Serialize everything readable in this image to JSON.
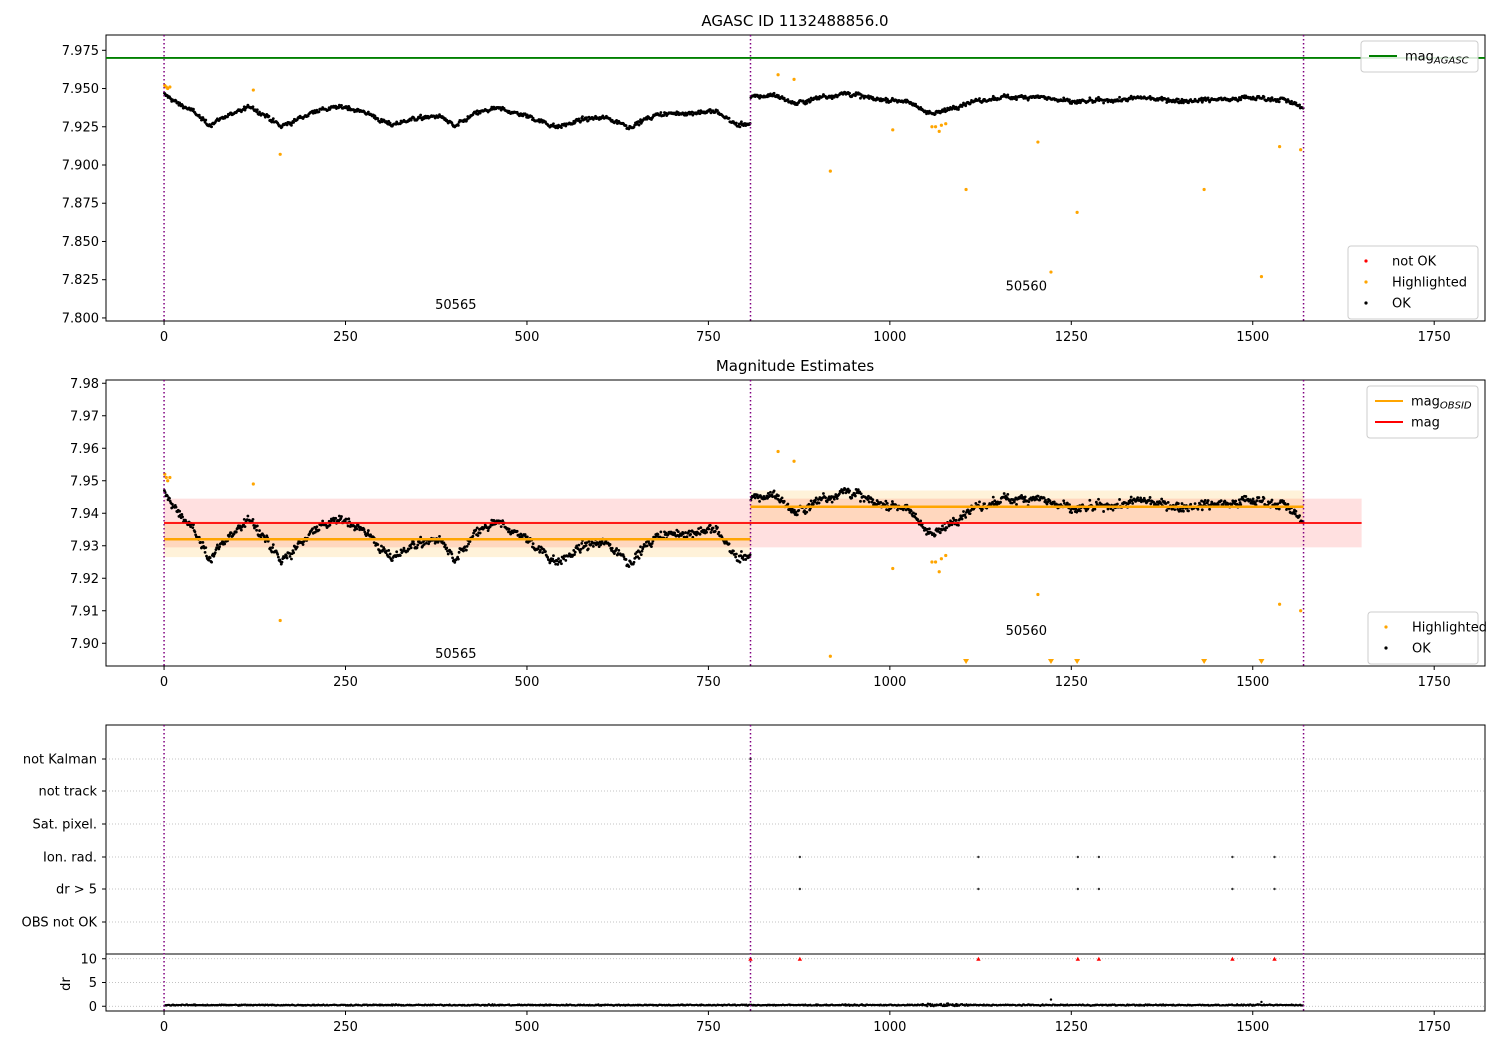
{
  "colors": {
    "ok": "#000000",
    "highlighted": "#ffa500",
    "not_ok": "#ff0000",
    "mag_agasc": "#008000",
    "mag_obsid": "#ffa500",
    "mag": "#ff0000",
    "obsid_boundary": "#800080",
    "grid": "#b0b0b0"
  },
  "chart_data": [
    {
      "type": "scatter",
      "title": "AGASC ID 1132488856.0",
      "xlim": [
        -80,
        1820
      ],
      "ylim": [
        7.798,
        7.985
      ],
      "xticks": [
        "0",
        "250",
        "500",
        "750",
        "1000",
        "1250",
        "1500",
        "1750"
      ],
      "yticks": [
        "7.800",
        "7.825",
        "7.850",
        "7.875",
        "7.900",
        "7.925",
        "7.950",
        "7.975"
      ],
      "obsid_boundaries": [
        0,
        808,
        1570
      ],
      "obsid_labels": [
        {
          "text": "50565",
          "x": 402,
          "y": 7.806
        },
        {
          "text": "50560",
          "x": 1188,
          "y": 7.818
        }
      ],
      "hlines": [
        {
          "name": "mag_AGASC",
          "y": 7.97,
          "color": "#008000"
        }
      ],
      "legends": [
        {
          "position": "upper right",
          "entries": [
            {
              "label": "mag",
              "sub": "AGASC",
              "kind": "line",
              "color": "#008000"
            }
          ]
        },
        {
          "position": "lower right",
          "entries": [
            {
              "label": "not OK",
              "kind": "dot",
              "color": "#ff0000"
            },
            {
              "label": "Highlighted",
              "kind": "dot",
              "color": "#ffa500"
            },
            {
              "label": "OK",
              "kind": "dot",
              "color": "#000000"
            }
          ]
        }
      ],
      "highlighted_points": [
        {
          "x": 1,
          "y": 7.952
        },
        {
          "x": 3,
          "y": 7.951
        },
        {
          "x": 5,
          "y": 7.95
        },
        {
          "x": 8,
          "y": 7.951
        },
        {
          "x": 123,
          "y": 7.949
        },
        {
          "x": 160,
          "y": 7.907
        },
        {
          "x": 846,
          "y": 7.959
        },
        {
          "x": 868,
          "y": 7.956
        },
        {
          "x": 918,
          "y": 7.896
        },
        {
          "x": 1004,
          "y": 7.923
        },
        {
          "x": 1058,
          "y": 7.925
        },
        {
          "x": 1063,
          "y": 7.925
        },
        {
          "x": 1068,
          "y": 7.922
        },
        {
          "x": 1071,
          "y": 7.926
        },
        {
          "x": 1077,
          "y": 7.927
        },
        {
          "x": 1105,
          "y": 7.884
        },
        {
          "x": 1204,
          "y": 7.915
        },
        {
          "x": 1222,
          "y": 7.83
        },
        {
          "x": 1258,
          "y": 7.869
        },
        {
          "x": 1433,
          "y": 7.884
        },
        {
          "x": 1512,
          "y": 7.827
        },
        {
          "x": 1537,
          "y": 7.912
        },
        {
          "x": 1566,
          "y": 7.91
        }
      ],
      "ok_series": {
        "description": "approx. 1570 OK points; values are local levels, each point randomly scattered by +/- jitter",
        "jitter": 0.0045,
        "segments": [
          {
            "x0": 0,
            "x1": 808,
            "levels": [
              [
                0,
                7.946
              ],
              [
                20,
                7.94
              ],
              [
                40,
                7.935
              ],
              [
                60,
                7.926
              ],
              [
                90,
                7.933
              ],
              [
                120,
                7.938
              ],
              [
                140,
                7.932
              ],
              [
                160,
                7.925
              ],
              [
                180,
                7.929
              ],
              [
                210,
                7.936
              ],
              [
                250,
                7.938
              ],
              [
                280,
                7.934
              ],
              [
                310,
                7.926
              ],
              [
                340,
                7.93
              ],
              [
                380,
                7.932
              ],
              [
                400,
                7.925
              ],
              [
                430,
                7.934
              ],
              [
                460,
                7.937
              ],
              [
                500,
                7.932
              ],
              [
                540,
                7.925
              ],
              [
                580,
                7.93
              ],
              [
                610,
                7.931
              ],
              [
                640,
                7.925
              ],
              [
                680,
                7.933
              ],
              [
                720,
                7.934
              ],
              [
                760,
                7.935
              ],
              [
                790,
                7.926
              ],
              [
                808,
                7.927
              ]
            ]
          },
          {
            "x0": 808,
            "x1": 1570,
            "levels": [
              [
                808,
                7.944
              ],
              [
                840,
                7.946
              ],
              [
                870,
                7.94
              ],
              [
                900,
                7.944
              ],
              [
                940,
                7.947
              ],
              [
                980,
                7.943
              ],
              [
                1020,
                7.942
              ],
              [
                1060,
                7.933
              ],
              [
                1100,
                7.94
              ],
              [
                1150,
                7.944
              ],
              [
                1200,
                7.945
              ],
              [
                1250,
                7.941
              ],
              [
                1300,
                7.942
              ],
              [
                1350,
                7.944
              ],
              [
                1400,
                7.942
              ],
              [
                1450,
                7.943
              ],
              [
                1500,
                7.944
              ],
              [
                1540,
                7.943
              ],
              [
                1570,
                7.937
              ]
            ]
          }
        ]
      }
    },
    {
      "type": "scatter",
      "title": "Magnitude Estimates",
      "xlim": [
        -80,
        1820
      ],
      "ylim": [
        7.893,
        7.981
      ],
      "xticks": [
        "0",
        "250",
        "500",
        "750",
        "1000",
        "1250",
        "1500",
        "1750"
      ],
      "yticks": [
        "7.90",
        "7.91",
        "7.92",
        "7.93",
        "7.94",
        "7.95",
        "7.96",
        "7.97",
        "7.98"
      ],
      "obsid_boundaries": [
        0,
        808,
        1570
      ],
      "obsid_labels": [
        {
          "text": "50565",
          "x": 402,
          "y": 7.8955
        },
        {
          "text": "50560",
          "x": 1188,
          "y": 7.9025
        }
      ],
      "mag": {
        "y": 7.937,
        "band": [
          7.9295,
          7.9445
        ],
        "x0": 0,
        "x1": 1650,
        "color": "#ff0000"
      },
      "mag_obsid": [
        {
          "x0": 0,
          "x1": 808,
          "y": 7.932,
          "band": [
            7.9265,
            7.9375
          ]
        },
        {
          "x0": 808,
          "x1": 1570,
          "y": 7.942,
          "band": [
            7.937,
            7.947
          ]
        }
      ],
      "legends": [
        {
          "position": "upper right",
          "entries": [
            {
              "label": "mag",
              "sub": "OBSID",
              "kind": "line",
              "color": "#ffa500"
            },
            {
              "label": "mag",
              "kind": "line",
              "color": "#ff0000"
            }
          ]
        },
        {
          "position": "lower right",
          "entries": [
            {
              "label": "Highlighted",
              "kind": "dot",
              "color": "#ffa500"
            },
            {
              "label": "OK",
              "kind": "dot",
              "color": "#000000"
            }
          ]
        }
      ],
      "highlighted_points": [
        {
          "x": 1,
          "y": 7.952
        },
        {
          "x": 3,
          "y": 7.951
        },
        {
          "x": 5,
          "y": 7.95
        },
        {
          "x": 8,
          "y": 7.951
        },
        {
          "x": 123,
          "y": 7.949
        },
        {
          "x": 160,
          "y": 7.907
        },
        {
          "x": 846,
          "y": 7.959
        },
        {
          "x": 868,
          "y": 7.956
        },
        {
          "x": 918,
          "y": 7.896
        },
        {
          "x": 1004,
          "y": 7.923
        },
        {
          "x": 1058,
          "y": 7.925
        },
        {
          "x": 1063,
          "y": 7.925
        },
        {
          "x": 1068,
          "y": 7.922
        },
        {
          "x": 1071,
          "y": 7.926
        },
        {
          "x": 1077,
          "y": 7.927
        },
        {
          "x": 1204,
          "y": 7.915
        },
        {
          "x": 1537,
          "y": 7.912
        },
        {
          "x": 1566,
          "y": 7.91
        }
      ],
      "below_range_markers": [
        1105,
        1222,
        1258,
        1433,
        1512
      ],
      "ok_series": {
        "same_as_panel": 0
      }
    },
    {
      "type": "scatter",
      "title": "",
      "xlim": [
        -80,
        1820
      ],
      "ylim_dr": [
        -1,
        11
      ],
      "xticks": [
        "0",
        "250",
        "500",
        "750",
        "1000",
        "1250",
        "1500",
        "1750"
      ],
      "flag_rows": [
        "not Kalman",
        "not track",
        "Sat. pixel.",
        "Ion. rad.",
        "dr > 5",
        "OBS not OK"
      ],
      "dr_yticks": [
        "0",
        "5",
        "10"
      ],
      "dr_label": "dr",
      "obsid_boundaries": [
        0,
        808,
        1570
      ],
      "flag_points": {
        "not Kalman": [
          808
        ],
        "Ion. rad.": [
          876,
          1122,
          1259,
          1288,
          1472,
          1530
        ],
        "dr > 5": [
          876,
          1122,
          1259,
          1288,
          1472,
          1530
        ]
      },
      "dr_clipped_markers": [
        808,
        876,
        1122,
        1259,
        1288,
        1472,
        1530
      ],
      "dr_series": {
        "description": "dr for approx. 1570 points, values near 0-0.5 with a few small excursions",
        "base": 0.25,
        "jitter": 0.2,
        "excursions": [
          {
            "x": 1222,
            "y": 1.4
          },
          {
            "x": 1512,
            "y": 0.9
          },
          {
            "x": 1080,
            "y": 0.6
          }
        ]
      }
    }
  ]
}
